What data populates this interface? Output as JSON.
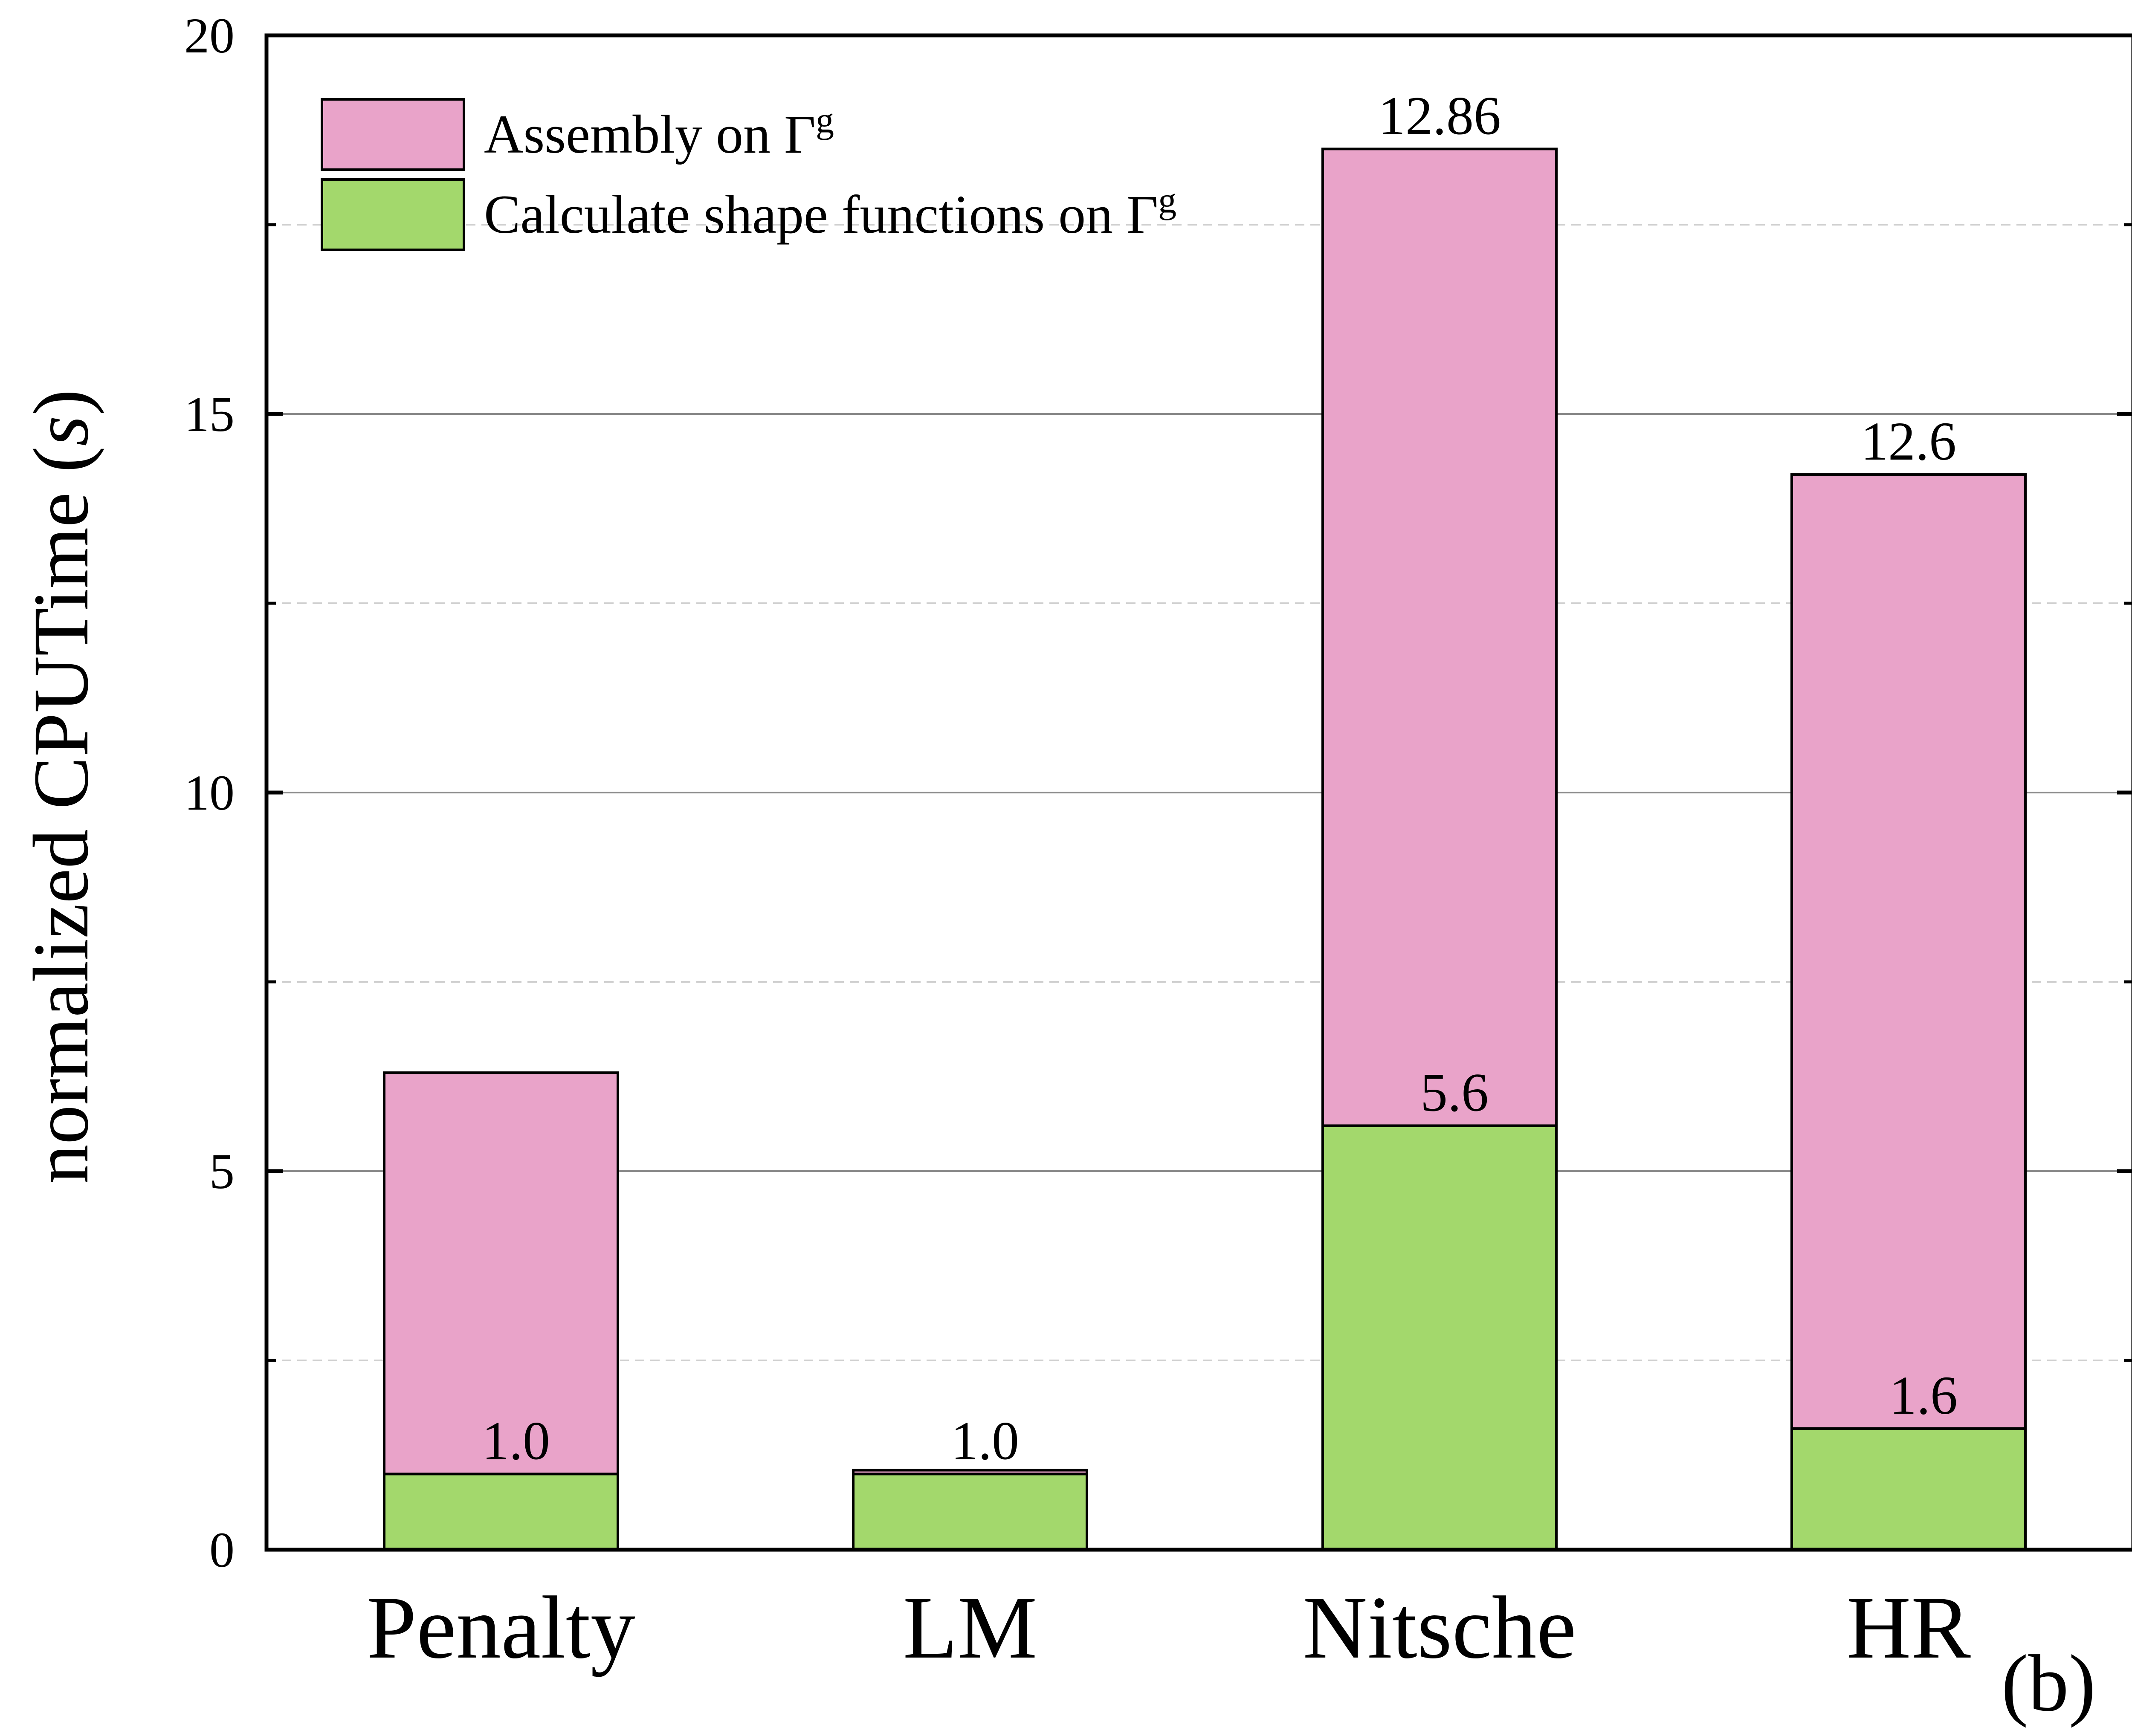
{
  "chart_data": {
    "type": "bar",
    "stacked": true,
    "categories": [
      "Penalty",
      "LM",
      "Nitsche",
      "HR"
    ],
    "series": [
      {
        "name": "Calculate shape functions on Γ",
        "superscript": "g",
        "color": "#a3d86c",
        "values": [
          1.0,
          1.0,
          5.6,
          1.6
        ]
      },
      {
        "name": "Assembly on Γ",
        "superscript": "g",
        "color": "#e9a3c9",
        "values": [
          5.3,
          0.05,
          12.9,
          12.6
        ]
      }
    ],
    "bottom_labels": [
      "1.0",
      "1.0",
      "5.6",
      "1.6"
    ],
    "top_labels": [
      "",
      "",
      "12.86",
      "12.6"
    ],
    "ylabel": "normalized CPUTime (",
    "ylabel_unit": "s",
    "ylabel_close": ")",
    "ylim": [
      0,
      20
    ],
    "yticks": [
      0,
      5,
      10,
      15,
      20
    ],
    "minor_gridlines": [
      2.5,
      7.5,
      12.5,
      17.5
    ],
    "grid": true,
    "legend_position": "top-left",
    "panel_label": "(b)"
  }
}
